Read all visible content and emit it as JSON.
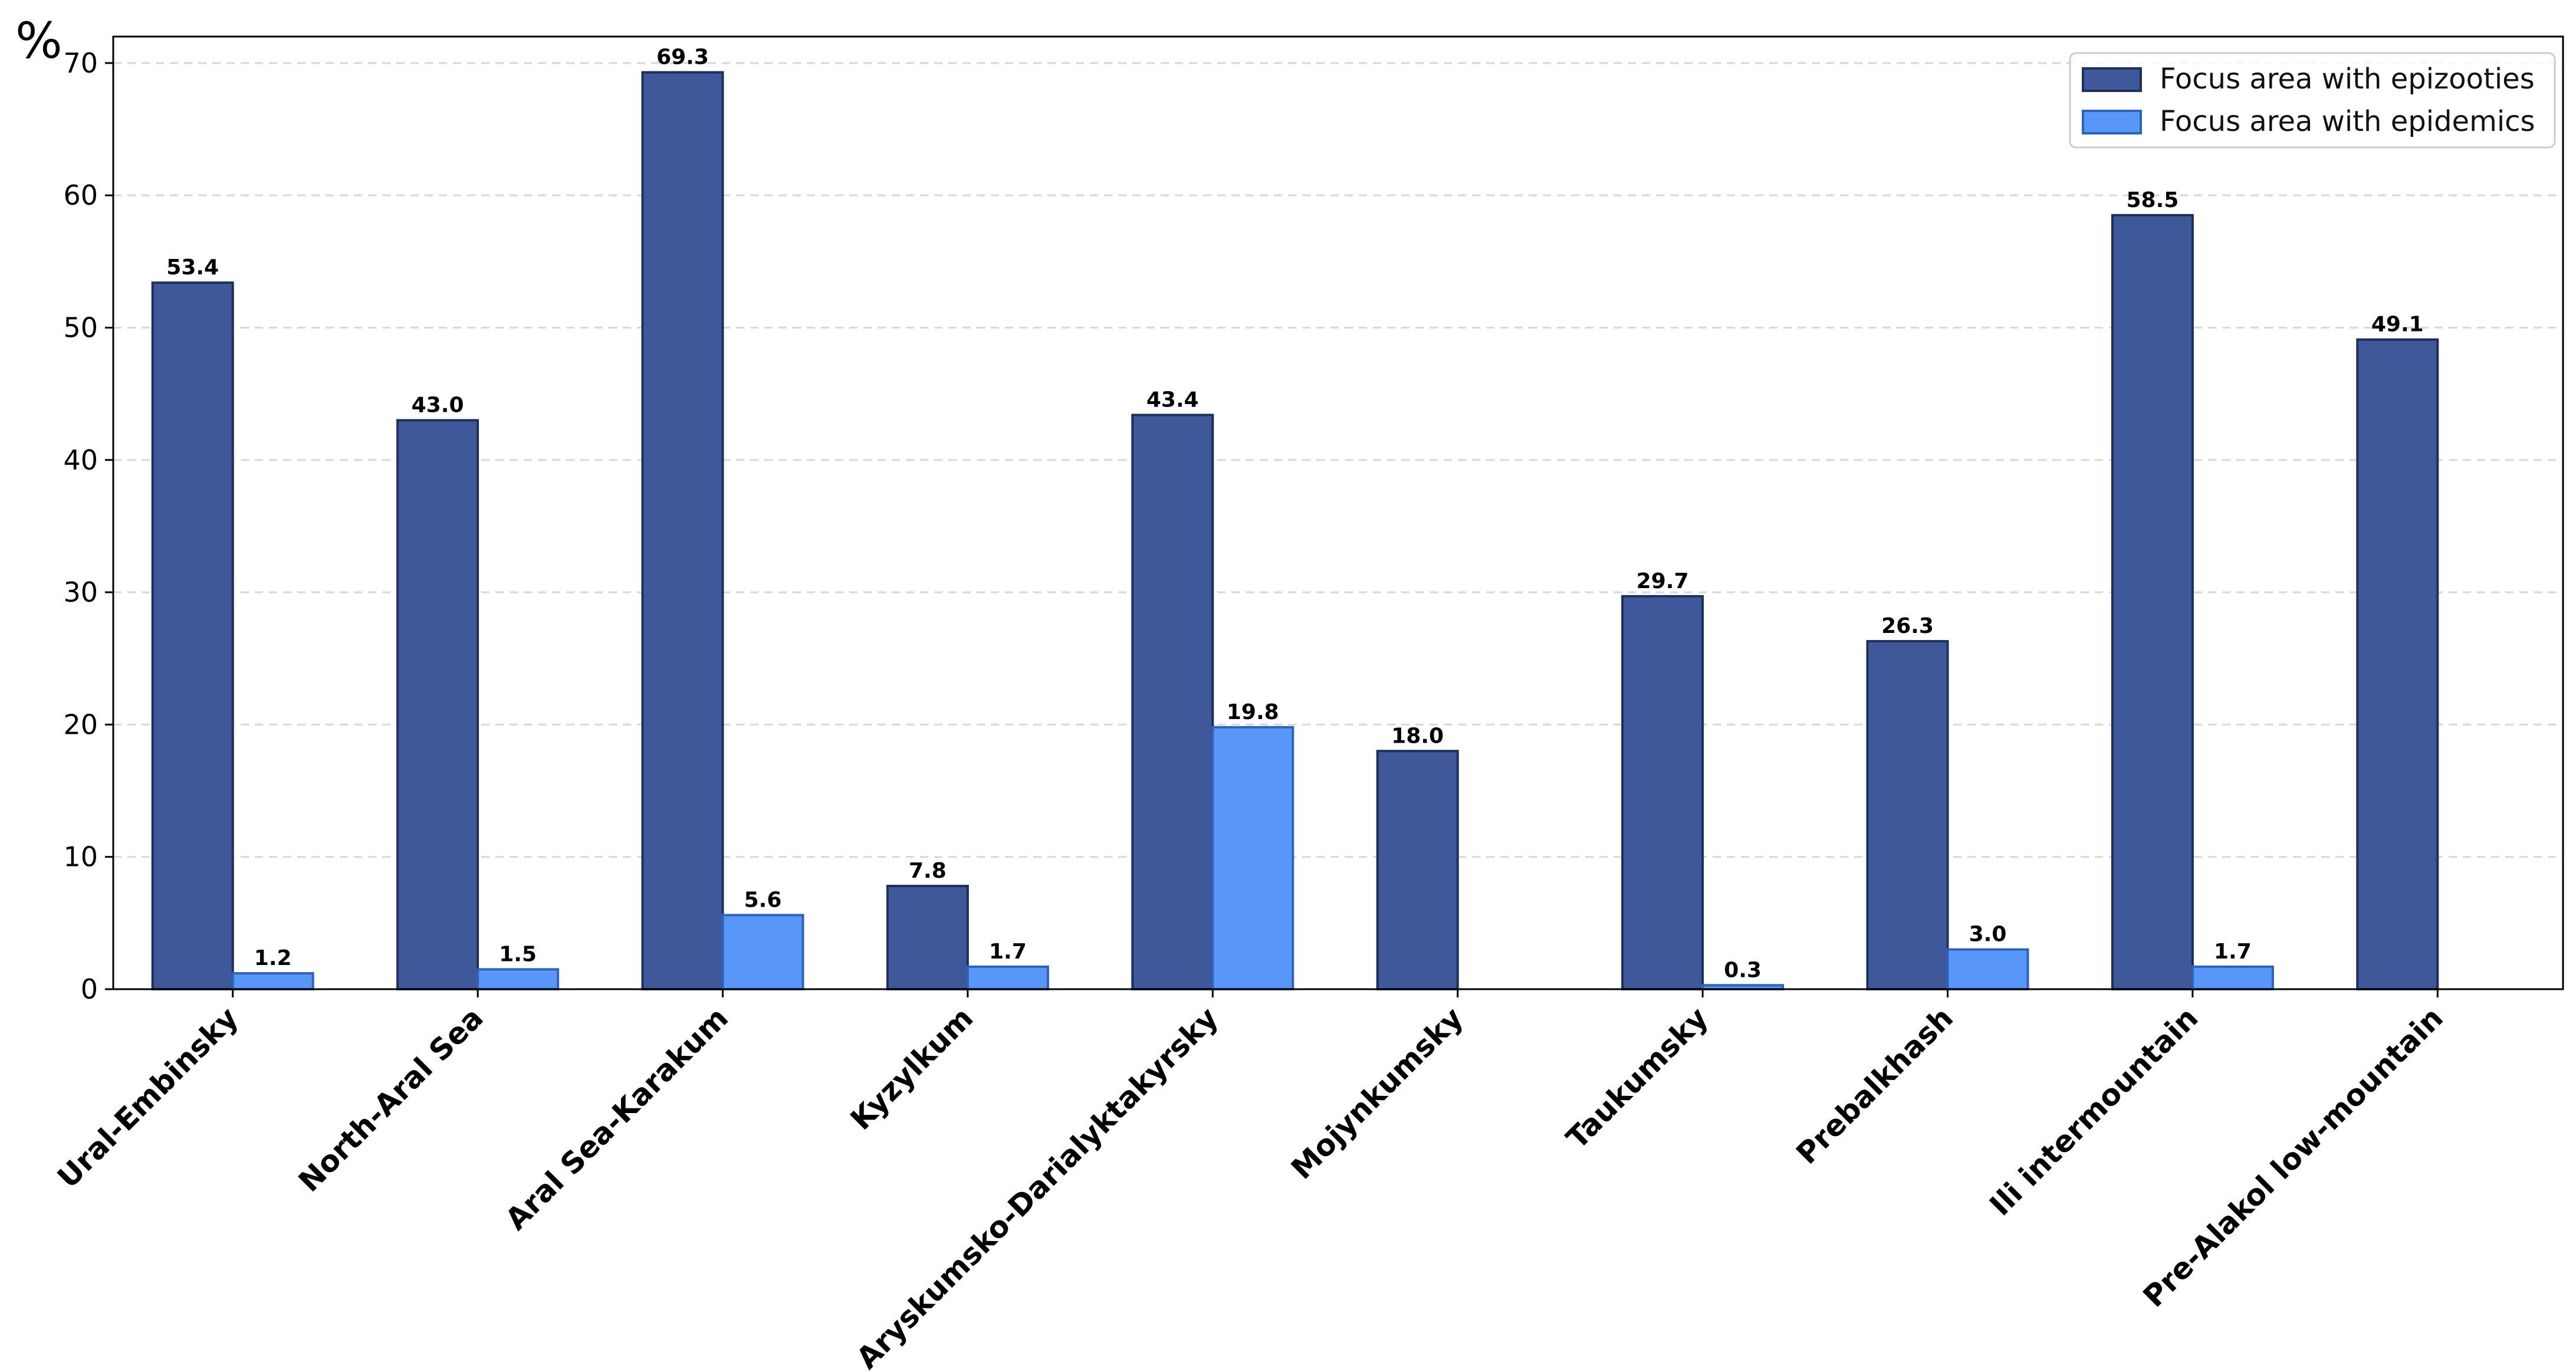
{
  "chart_data": {
    "type": "bar",
    "ylabel": "%",
    "ylim": [
      0,
      72
    ],
    "yticks": [
      0,
      10,
      20,
      30,
      40,
      50,
      60,
      70
    ],
    "grid": "horizontal dashed",
    "legend_position": "top-right",
    "categories": [
      "Ural-Embinsky",
      "North-Aral Sea",
      "Aral Sea-Karakum",
      "Kyzylkum",
      "Aryskumsko-Darialyktakyrsky",
      "Mojynkumsky",
      "Taukumsky",
      "Prebalkhash",
      "Ili intermountain",
      "Pre-Alakol low-mountain"
    ],
    "series": [
      {
        "name": "Focus area with epizooties",
        "color": "#3F5899",
        "edge_color": "#1F2F5C",
        "values": [
          53.4,
          43.0,
          69.3,
          7.8,
          43.4,
          18.0,
          29.7,
          26.3,
          58.5,
          49.1
        ],
        "labels": [
          "53.4",
          "43.0",
          "69.3",
          "7.8",
          "43.4",
          "18.0",
          "29.7",
          "26.3",
          "58.5",
          "49.1"
        ]
      },
      {
        "name": "Focus area with epidemics",
        "color": "#5897F7",
        "edge_color": "#2F62B8",
        "values": [
          1.2,
          1.5,
          5.6,
          1.7,
          19.8,
          0,
          0.3,
          3.0,
          1.7,
          0
        ],
        "labels": [
          "1.2",
          "1.5",
          "5.6",
          "1.7",
          "19.8",
          "",
          "0.3",
          "3.0",
          "1.7",
          ""
        ]
      }
    ]
  }
}
